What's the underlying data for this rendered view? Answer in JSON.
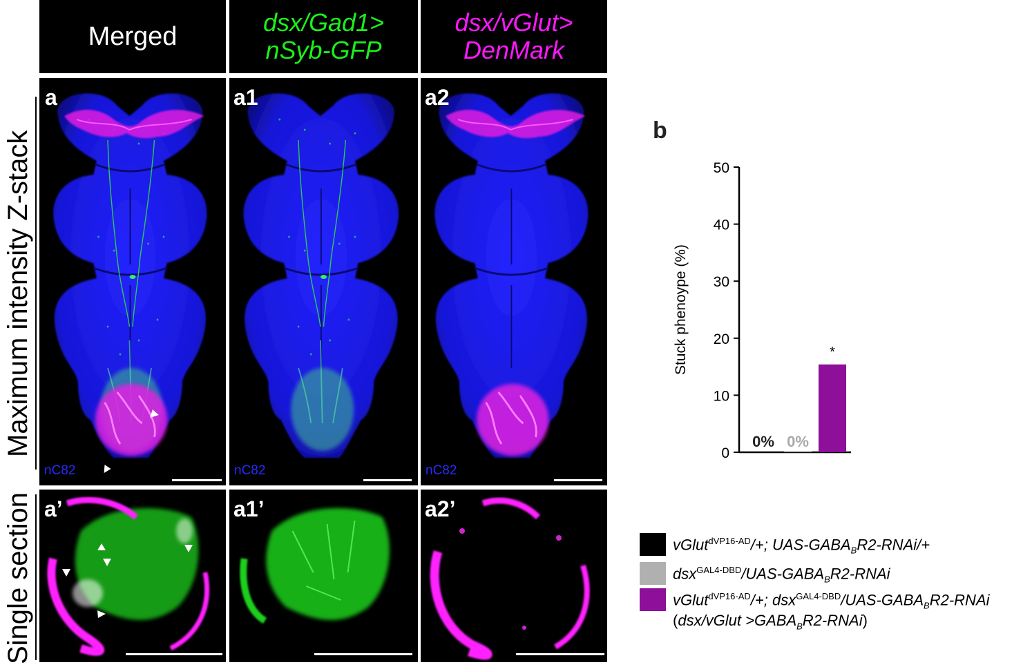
{
  "columns": [
    {
      "label": "Merged"
    },
    {
      "label_line1": "dsx/Gad1>",
      "label_line2": "nSyb-GFP"
    },
    {
      "label_line1": "dsx/vGlut>",
      "label_line2": "DenMark"
    }
  ],
  "rows": {
    "top": "Maximum intensity Z-stack",
    "bottom": "Single section"
  },
  "panel_labels": {
    "a": "a",
    "a1": "a1",
    "a2": "a2",
    "a_prime": "a’",
    "a1_prime": "a1’",
    "a2_prime": "a2’",
    "b": "b"
  },
  "stain_label": "nC82",
  "colors": {
    "neuropil": "#1a1aff",
    "gfp": "#22f022",
    "denmark": "#ff1cff",
    "bar_black": "#000000",
    "bar_gray": "#b0b0b0",
    "bar_purple": "#8e0f9a"
  },
  "chart_data": {
    "type": "bar",
    "ylabel": "Stuck phenoype (%)",
    "ylim": [
      0,
      50
    ],
    "yticks": [
      0,
      10,
      20,
      30,
      40,
      50
    ],
    "categories": [
      "vGlut dVP16-AD/+; UAS-GABABR2-RNAi/+",
      "dsx GAL4-DBD/UAS-GABABR2-RNAi",
      "vGlut dVP16-AD/+; dsx GAL4-DBD/UAS-GABABR2-RNAi"
    ],
    "values": [
      0,
      0,
      15.4
    ],
    "value_labels": [
      "0%",
      "0%",
      ""
    ],
    "significance": [
      "",
      "",
      "*"
    ],
    "bar_colors": [
      "#000000",
      "#b0b0b0",
      "#8e0f9a"
    ]
  },
  "legend": {
    "items": [
      {
        "p1": "vGlut",
        "s1": "dVP16-AD",
        "p2": "/+; UAS-GABA",
        "b2": "B",
        "p3": "R2-RNAi/+",
        "s3": "",
        "p4": "",
        "b4": "",
        "p5": ""
      },
      {
        "p1": "dsx",
        "s1": "GAL4-DBD",
        "p2": "/UAS-GABA",
        "b2": "B",
        "p3": "R2-RNAi",
        "s3": "",
        "p4": "",
        "b4": "",
        "p5": ""
      },
      {
        "p1": "vGlut",
        "s1": "dVP16-AD",
        "p2": "/+; dsx",
        "b2": "",
        "p3": "",
        "s3": "GAL4-DBD",
        "p4": "/UAS-GABA",
        "b4": "B",
        "p5": "R2-RNAi"
      }
    ],
    "note_open": "(",
    "note_italic1": "dsx/vGlut >GABA",
    "note_sub": "B",
    "note_italic2": "R2-RNAi",
    "note_close": ")"
  }
}
